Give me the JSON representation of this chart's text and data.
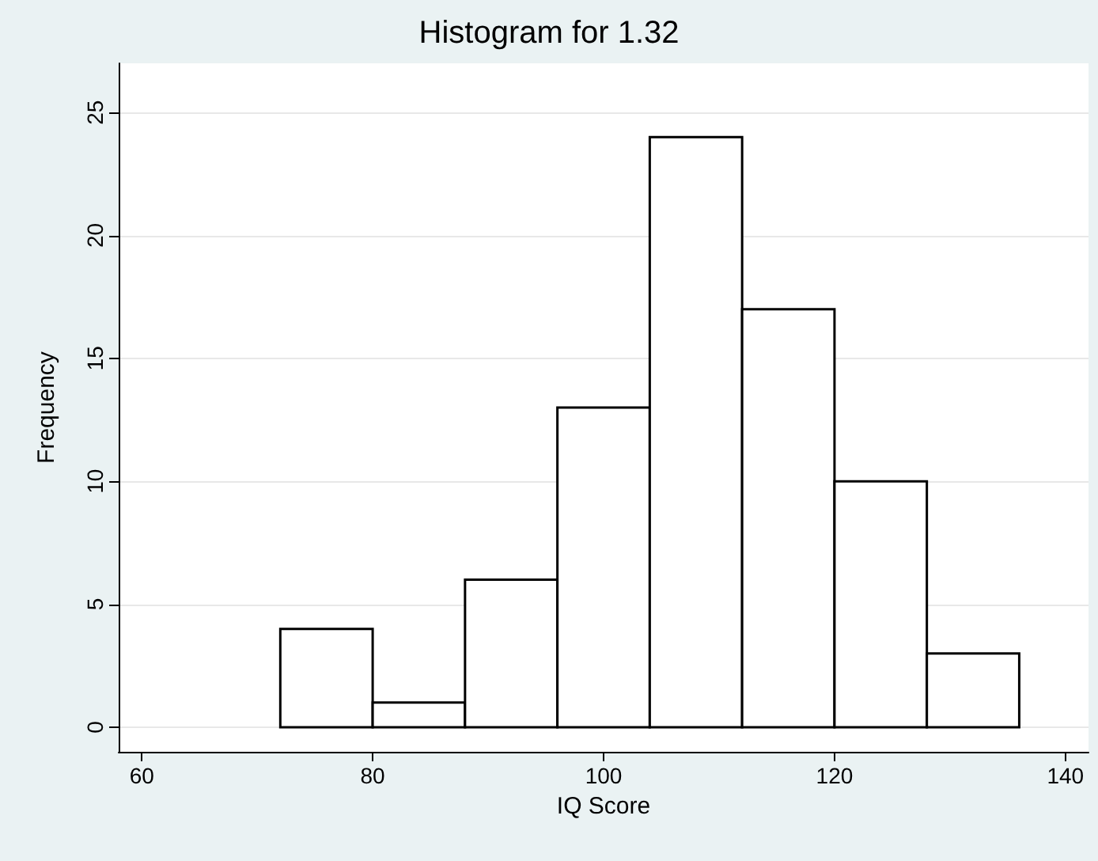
{
  "chart_data": {
    "type": "histogram",
    "title": "Histogram for 1.32",
    "xlabel": "IQ Score",
    "ylabel": "Frequency",
    "bins": [
      72,
      80,
      88,
      96,
      104,
      112,
      120,
      128,
      136
    ],
    "values": [
      4,
      1,
      6,
      13,
      24,
      17,
      10,
      3
    ],
    "color": "#ffffff",
    "xlim": [
      58,
      142
    ],
    "xticks": [
      60,
      80,
      100,
      120,
      140
    ],
    "ylim": [
      -1,
      27
    ],
    "yticks": [
      0,
      5,
      10,
      15,
      20,
      25
    ],
    "grid": "y"
  }
}
